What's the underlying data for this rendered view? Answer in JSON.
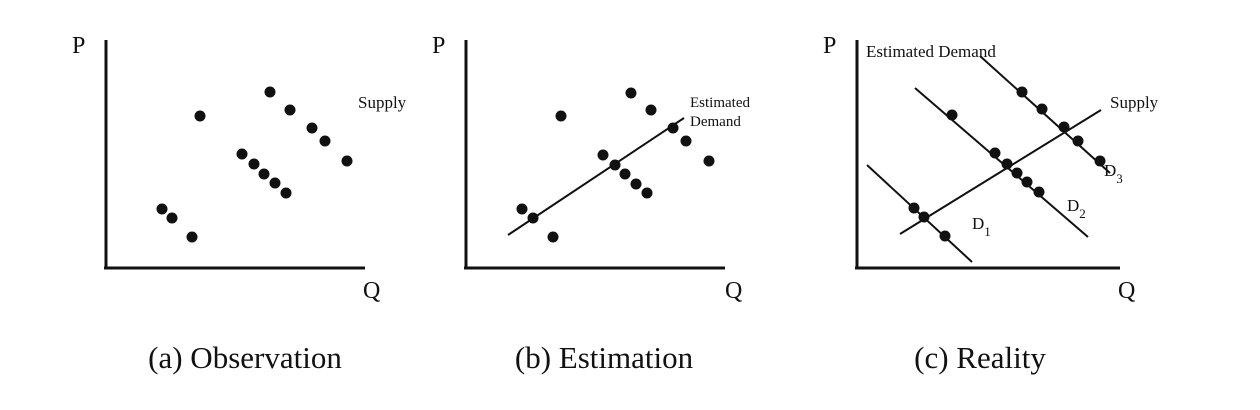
{
  "axis_letters": {
    "price": "P",
    "quantity": "Q"
  },
  "panels": [
    {
      "caption": "(a) Observation",
      "notes": [
        "Supply"
      ],
      "points": [
        [
          200,
          116
        ],
        [
          270,
          92
        ],
        [
          290,
          110
        ],
        [
          312,
          128
        ],
        [
          325,
          141
        ],
        [
          347,
          161
        ],
        [
          242,
          154
        ],
        [
          254,
          164
        ],
        [
          264,
          174
        ],
        [
          275,
          183
        ],
        [
          286,
          193
        ],
        [
          162,
          209
        ],
        [
          172,
          218
        ],
        [
          192,
          237
        ]
      ]
    },
    {
      "caption": "(b) Estimation",
      "notes": [
        "Estimated",
        "Demand"
      ],
      "points": [
        [
          561,
          116
        ],
        [
          631,
          93
        ],
        [
          651,
          110
        ],
        [
          673,
          128
        ],
        [
          686,
          141
        ],
        [
          709,
          161
        ],
        [
          603,
          155
        ],
        [
          615,
          165
        ],
        [
          625,
          174
        ],
        [
          636,
          184
        ],
        [
          647,
          193
        ],
        [
          522,
          209
        ],
        [
          533,
          218
        ],
        [
          553,
          237
        ]
      ]
    },
    {
      "caption": "(c) Reality",
      "notes": [
        "Estimated Demand",
        "Supply",
        "D",
        "3",
        "D",
        "2",
        "D",
        "1"
      ],
      "points": [
        [
          1022,
          92
        ],
        [
          1042,
          109
        ],
        [
          1064,
          127
        ],
        [
          1078,
          141
        ],
        [
          1100,
          161
        ],
        [
          952,
          115
        ],
        [
          995,
          153
        ],
        [
          1007,
          164
        ],
        [
          1017,
          173
        ],
        [
          1027,
          182
        ],
        [
          1039,
          192
        ],
        [
          914,
          208
        ],
        [
          924,
          217
        ],
        [
          945,
          236
        ]
      ]
    }
  ]
}
